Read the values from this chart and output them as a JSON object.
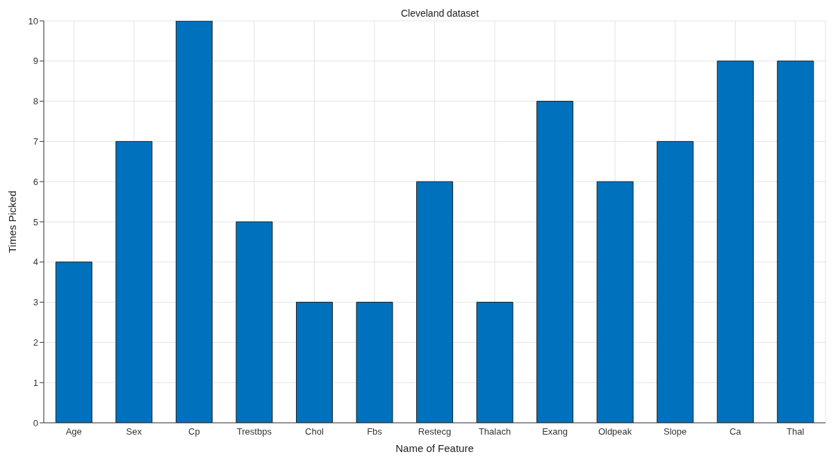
{
  "chart_data": {
    "type": "bar",
    "title": "Cleveland dataset",
    "xlabel": "Name of Feature",
    "ylabel": "Times Picked",
    "categories": [
      "Age",
      "Sex",
      "Cp",
      "Trestbps",
      "Chol",
      "Fbs",
      "Restecg",
      "Thalach",
      "Exang",
      "Oldpeak",
      "Slope",
      "Ca",
      "Thal"
    ],
    "values": [
      4,
      7,
      10,
      5,
      3,
      3,
      6,
      3,
      8,
      6,
      7,
      9,
      9
    ],
    "color": "#0072bd",
    "ylim": [
      0,
      10
    ],
    "yticks": [
      0,
      1,
      2,
      3,
      4,
      5,
      6,
      7,
      8,
      9,
      10
    ],
    "grid": true
  }
}
